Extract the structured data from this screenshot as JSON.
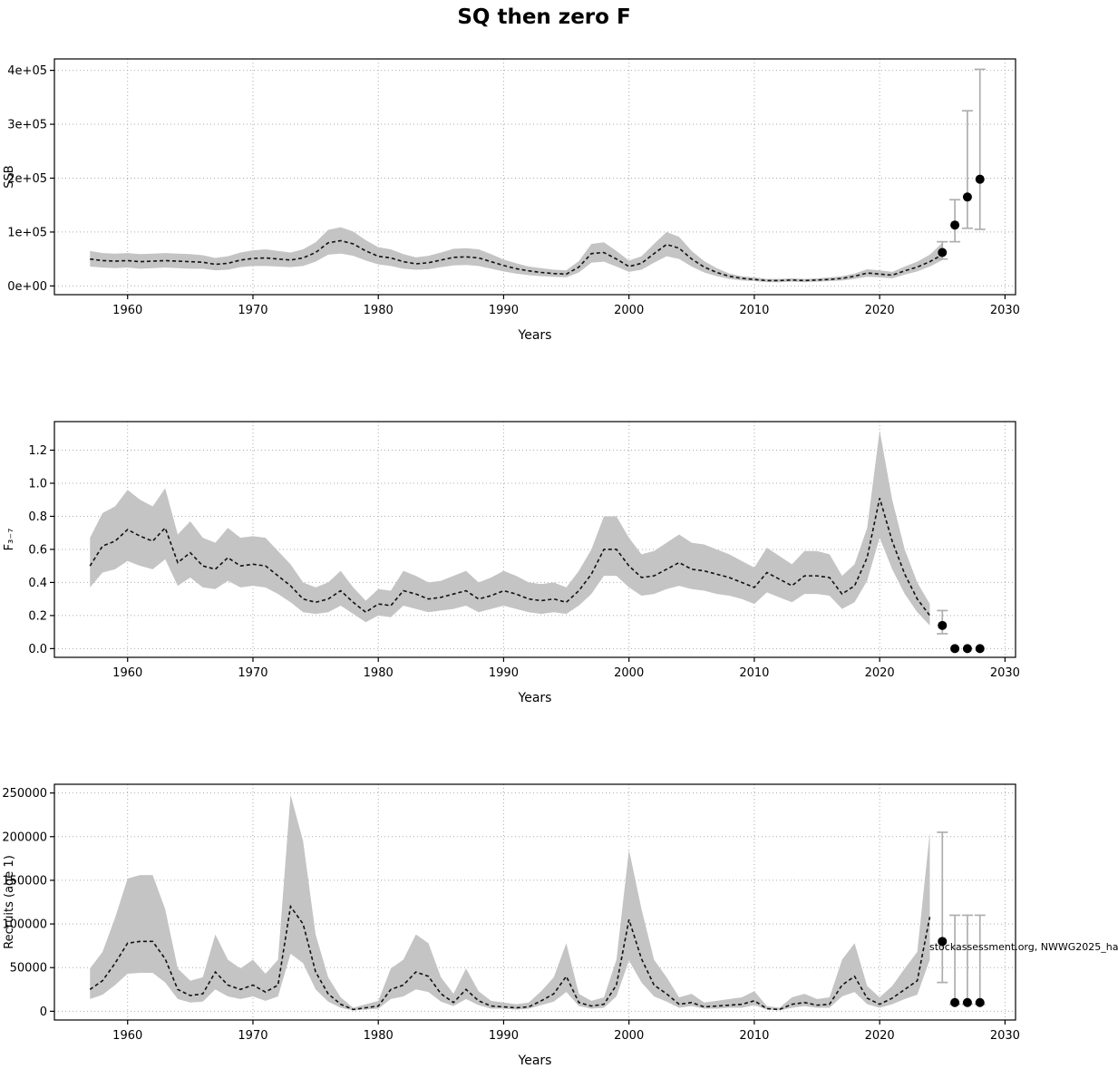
{
  "figure": {
    "title": "SQ then zero F",
    "caption": "stockassessment.org, NWWG2025_ha"
  },
  "chart_data": [
    {
      "type": "line",
      "name": "ssb",
      "ylabel": "SSB",
      "xlabel": "Years",
      "xlim": [
        1957,
        2028
      ],
      "ylim": [
        0,
        405000
      ],
      "xticks": [
        1960,
        1970,
        1980,
        1990,
        2000,
        2010,
        2020,
        2030
      ],
      "yticks": [
        0,
        100000,
        200000,
        300000,
        400000
      ],
      "ytick_labels": [
        "0e+00",
        "1e+05",
        "2e+05",
        "3e+05",
        "4e+05"
      ],
      "x": [
        1957,
        1958,
        1959,
        1960,
        1961,
        1962,
        1963,
        1964,
        1965,
        1966,
        1967,
        1968,
        1969,
        1970,
        1971,
        1972,
        1973,
        1974,
        1975,
        1976,
        1977,
        1978,
        1979,
        1980,
        1981,
        1982,
        1983,
        1984,
        1985,
        1986,
        1987,
        1988,
        1989,
        1990,
        1991,
        1992,
        1993,
        1994,
        1995,
        1996,
        1997,
        1998,
        1999,
        2000,
        2001,
        2002,
        2003,
        2004,
        2005,
        2006,
        2007,
        2008,
        2009,
        2010,
        2011,
        2012,
        2013,
        2014,
        2015,
        2016,
        2017,
        2018,
        2019,
        2020,
        2021,
        2022,
        2023,
        2024,
        2025
      ],
      "y": [
        50000,
        47000,
        46000,
        47000,
        45000,
        46000,
        47000,
        46000,
        45000,
        44000,
        40000,
        42000,
        48000,
        51000,
        52000,
        50000,
        48000,
        52000,
        62000,
        80000,
        84000,
        78000,
        65000,
        55000,
        52000,
        45000,
        41000,
        43000,
        48000,
        53000,
        54000,
        52000,
        45000,
        38000,
        32000,
        28000,
        25000,
        23000,
        22000,
        35000,
        60000,
        62000,
        50000,
        36000,
        42000,
        60000,
        77000,
        70000,
        50000,
        35000,
        25000,
        18000,
        14000,
        12000,
        10000,
        10000,
        11000,
        10000,
        11000,
        12000,
        14000,
        18000,
        24000,
        22000,
        20000,
        28000,
        35000,
        45000,
        58000
      ],
      "lo": [
        36000,
        34000,
        33000,
        34000,
        32000,
        33000,
        34000,
        33000,
        32000,
        32000,
        29000,
        30000,
        35000,
        37000,
        37000,
        36000,
        35000,
        37000,
        45000,
        58000,
        60000,
        56000,
        47000,
        40000,
        37000,
        32000,
        30000,
        31000,
        35000,
        38000,
        39000,
        37000,
        32000,
        27000,
        23000,
        20000,
        18000,
        17000,
        16000,
        25000,
        43000,
        45000,
        36000,
        26000,
        30000,
        43000,
        55000,
        50000,
        36000,
        25000,
        18000,
        13000,
        10000,
        9000,
        7000,
        7000,
        8000,
        7000,
        8000,
        9000,
        10000,
        13000,
        17000,
        16000,
        14000,
        21000,
        27000,
        36000,
        48000
      ],
      "hi": [
        65000,
        61000,
        60000,
        61000,
        59000,
        60000,
        61000,
        60000,
        59000,
        57000,
        52000,
        55000,
        62000,
        66000,
        68000,
        65000,
        62000,
        68000,
        81000,
        104000,
        109000,
        101000,
        85000,
        72000,
        68000,
        59000,
        53000,
        56000,
        62000,
        69000,
        70000,
        68000,
        59000,
        49000,
        42000,
        36000,
        33000,
        30000,
        29000,
        46000,
        78000,
        81000,
        65000,
        47000,
        55000,
        78000,
        100000,
        91000,
        65000,
        46000,
        33000,
        23000,
        18000,
        16000,
        13000,
        13000,
        14000,
        13000,
        14000,
        16000,
        18000,
        23000,
        31000,
        29000,
        26000,
        36000,
        45000,
        58000,
        80000
      ],
      "forecast": {
        "x": [
          2025,
          2026,
          2027,
          2028
        ],
        "y": [
          62000,
          113000,
          165000,
          198000
        ],
        "lo": [
          50000,
          82000,
          107000,
          105000
        ],
        "hi": [
          82000,
          160000,
          325000,
          402000
        ]
      }
    },
    {
      "type": "line",
      "name": "fishing-mortality",
      "ylabel": "F₃₋₇",
      "xlabel": "Years",
      "xlim": [
        1957,
        2028
      ],
      "ylim": [
        0,
        1.32
      ],
      "xticks": [
        1960,
        1970,
        1980,
        1990,
        2000,
        2010,
        2020,
        2030
      ],
      "yticks": [
        0.0,
        0.2,
        0.4,
        0.6,
        0.8,
        1.0,
        1.2
      ],
      "ytick_labels": [
        "0.0",
        "0.2",
        "0.4",
        "0.6",
        "0.8",
        "1.0",
        "1.2"
      ],
      "x": [
        1957,
        1958,
        1959,
        1960,
        1961,
        1962,
        1963,
        1964,
        1965,
        1966,
        1967,
        1968,
        1969,
        1970,
        1971,
        1972,
        1973,
        1974,
        1975,
        1976,
        1977,
        1978,
        1979,
        1980,
        1981,
        1982,
        1983,
        1984,
        1985,
        1986,
        1987,
        1988,
        1989,
        1990,
        1991,
        1992,
        1993,
        1994,
        1995,
        1996,
        1997,
        1998,
        1999,
        2000,
        2001,
        2002,
        2003,
        2004,
        2005,
        2006,
        2007,
        2008,
        2009,
        2010,
        2011,
        2012,
        2013,
        2014,
        2015,
        2016,
        2017,
        2018,
        2019,
        2020,
        2021,
        2022,
        2023,
        2024
      ],
      "y": [
        0.5,
        0.62,
        0.65,
        0.72,
        0.68,
        0.65,
        0.73,
        0.52,
        0.58,
        0.5,
        0.48,
        0.55,
        0.5,
        0.51,
        0.5,
        0.44,
        0.38,
        0.3,
        0.28,
        0.3,
        0.35,
        0.28,
        0.22,
        0.27,
        0.26,
        0.35,
        0.33,
        0.3,
        0.31,
        0.33,
        0.35,
        0.3,
        0.32,
        0.35,
        0.33,
        0.3,
        0.29,
        0.3,
        0.28,
        0.35,
        0.45,
        0.6,
        0.6,
        0.5,
        0.43,
        0.44,
        0.48,
        0.52,
        0.48,
        0.47,
        0.45,
        0.43,
        0.4,
        0.37,
        0.46,
        0.42,
        0.38,
        0.44,
        0.44,
        0.43,
        0.33,
        0.38,
        0.55,
        0.91,
        0.65,
        0.45,
        0.3,
        0.2
      ],
      "lo": [
        0.37,
        0.46,
        0.48,
        0.53,
        0.5,
        0.48,
        0.54,
        0.38,
        0.43,
        0.37,
        0.36,
        0.41,
        0.37,
        0.38,
        0.37,
        0.33,
        0.28,
        0.22,
        0.21,
        0.22,
        0.26,
        0.21,
        0.16,
        0.2,
        0.19,
        0.26,
        0.24,
        0.22,
        0.23,
        0.24,
        0.26,
        0.22,
        0.24,
        0.26,
        0.24,
        0.22,
        0.21,
        0.22,
        0.21,
        0.26,
        0.33,
        0.44,
        0.44,
        0.37,
        0.32,
        0.33,
        0.36,
        0.38,
        0.36,
        0.35,
        0.33,
        0.32,
        0.3,
        0.27,
        0.34,
        0.31,
        0.28,
        0.33,
        0.33,
        0.32,
        0.24,
        0.28,
        0.41,
        0.67,
        0.48,
        0.33,
        0.22,
        0.14
      ],
      "hi": [
        0.67,
        0.82,
        0.86,
        0.96,
        0.9,
        0.86,
        0.97,
        0.69,
        0.77,
        0.67,
        0.64,
        0.73,
        0.67,
        0.68,
        0.67,
        0.59,
        0.51,
        0.4,
        0.37,
        0.4,
        0.47,
        0.37,
        0.29,
        0.36,
        0.35,
        0.47,
        0.44,
        0.4,
        0.41,
        0.44,
        0.47,
        0.4,
        0.43,
        0.47,
        0.44,
        0.4,
        0.39,
        0.4,
        0.37,
        0.47,
        0.6,
        0.8,
        0.8,
        0.67,
        0.57,
        0.59,
        0.64,
        0.69,
        0.64,
        0.63,
        0.6,
        0.57,
        0.53,
        0.49,
        0.61,
        0.56,
        0.51,
        0.59,
        0.59,
        0.57,
        0.44,
        0.51,
        0.73,
        1.32,
        0.9,
        0.6,
        0.4,
        0.27
      ],
      "forecast": {
        "x": [
          2025,
          2026,
          2027,
          2028
        ],
        "y": [
          0.14,
          0.0,
          0.0,
          0.0
        ],
        "lo": [
          0.09,
          0.0,
          0.0,
          0.0
        ],
        "hi": [
          0.23,
          0.0,
          0.0,
          0.0
        ]
      }
    },
    {
      "type": "line",
      "name": "recruits",
      "ylabel": "Recruits (age 1)",
      "xlabel": "Years",
      "xlim": [
        1957,
        2028
      ],
      "ylim": [
        0,
        250000
      ],
      "xticks": [
        1960,
        1970,
        1980,
        1990,
        2000,
        2010,
        2020,
        2030
      ],
      "yticks": [
        0,
        50000,
        100000,
        150000,
        200000,
        250000
      ],
      "ytick_labels": [
        "0",
        "50000",
        "100000",
        "150000",
        "200000",
        "250000"
      ],
      "x": [
        1957,
        1958,
        1959,
        1960,
        1961,
        1962,
        1963,
        1964,
        1965,
        1966,
        1967,
        1968,
        1969,
        1970,
        1971,
        1972,
        1973,
        1974,
        1975,
        1976,
        1977,
        1978,
        1979,
        1980,
        1981,
        1982,
        1983,
        1984,
        1985,
        1986,
        1987,
        1988,
        1989,
        1990,
        1991,
        1992,
        1993,
        1994,
        1995,
        1996,
        1997,
        1998,
        1999,
        2000,
        2001,
        2002,
        2003,
        2004,
        2005,
        2006,
        2007,
        2008,
        2009,
        2010,
        2011,
        2012,
        2013,
        2014,
        2015,
        2016,
        2017,
        2018,
        2019,
        2020,
        2021,
        2022,
        2023,
        2024
      ],
      "y": [
        25000,
        35000,
        55000,
        78000,
        80000,
        80000,
        60000,
        25000,
        18000,
        20000,
        45000,
        30000,
        25000,
        30000,
        22000,
        30000,
        120000,
        100000,
        45000,
        20000,
        8000,
        2000,
        4000,
        6000,
        25000,
        30000,
        45000,
        40000,
        20000,
        10000,
        25000,
        12000,
        6000,
        5000,
        4000,
        5000,
        12000,
        20000,
        40000,
        10000,
        6000,
        8000,
        30000,
        105000,
        60000,
        30000,
        20000,
        8000,
        10000,
        5000,
        6000,
        7000,
        8000,
        12000,
        3000,
        2000,
        8000,
        10000,
        7000,
        8000,
        30000,
        40000,
        15000,
        8000,
        15000,
        25000,
        35000,
        108000
      ],
      "lo": [
        14000,
        19000,
        30000,
        43000,
        44000,
        44000,
        33000,
        14000,
        10000,
        11000,
        25000,
        17000,
        14000,
        17000,
        12000,
        17000,
        66000,
        55000,
        25000,
        11000,
        4000,
        1000,
        2000,
        3000,
        14000,
        17000,
        25000,
        22000,
        11000,
        6000,
        14000,
        7000,
        3000,
        3000,
        2000,
        3000,
        7000,
        11000,
        22000,
        6000,
        3000,
        4000,
        17000,
        58000,
        33000,
        17000,
        11000,
        4000,
        6000,
        3000,
        3000,
        4000,
        4000,
        7000,
        2000,
        1000,
        4000,
        6000,
        4000,
        4000,
        17000,
        22000,
        8000,
        4000,
        8000,
        14000,
        19000,
        59000
      ],
      "hi": [
        49000,
        68000,
        107000,
        152000,
        156000,
        156000,
        117000,
        49000,
        35000,
        39000,
        88000,
        59000,
        49000,
        59000,
        43000,
        59000,
        248000,
        195000,
        88000,
        39000,
        16000,
        4000,
        8000,
        12000,
        49000,
        59000,
        88000,
        78000,
        39000,
        20000,
        49000,
        23000,
        12000,
        10000,
        8000,
        10000,
        23000,
        39000,
        78000,
        20000,
        12000,
        16000,
        59000,
        185000,
        117000,
        59000,
        39000,
        16000,
        20000,
        10000,
        12000,
        14000,
        16000,
        23000,
        6000,
        4000,
        16000,
        20000,
        14000,
        16000,
        59000,
        78000,
        29000,
        16000,
        29000,
        49000,
        68000,
        205000
      ],
      "forecast": {
        "x": [
          2025,
          2026,
          2027,
          2028
        ],
        "y": [
          80000,
          10000,
          10000,
          10000
        ],
        "lo": [
          33000,
          8000,
          8000,
          8000
        ],
        "hi": [
          205000,
          110000,
          110000,
          110000
        ]
      }
    }
  ]
}
